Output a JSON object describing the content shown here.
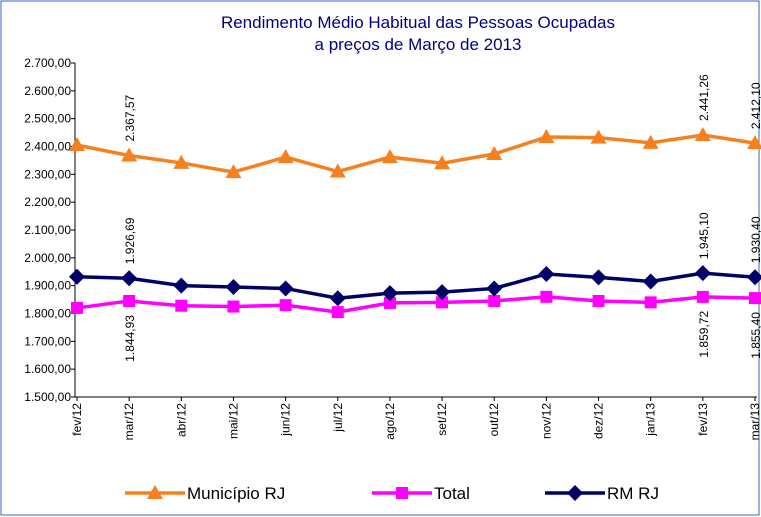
{
  "chart_data": {
    "type": "line",
    "title": [
      "Rendimento Médio Habitual das Pessoas Ocupadas",
      "a preços de Março de 2013"
    ],
    "categories": [
      "fev/12",
      "mar/12",
      "abr/12",
      "mai/12",
      "jun/12",
      "jul/12",
      "ago/12",
      "set/12",
      "out/12",
      "nov/12",
      "dez/12",
      "jan/13",
      "fev/13",
      "mar/13"
    ],
    "ylim": [
      1500,
      2700
    ],
    "yticks": [
      {
        "value": 1500,
        "label": "1.500,00"
      },
      {
        "value": 1600,
        "label": "1.600,00"
      },
      {
        "value": 1700,
        "label": "1.700,00"
      },
      {
        "value": 1800,
        "label": "1.800,00"
      },
      {
        "value": 1900,
        "label": "1.900,00"
      },
      {
        "value": 2000,
        "label": "2.000,00"
      },
      {
        "value": 2100,
        "label": "2.100,00"
      },
      {
        "value": 2200,
        "label": "2.200,00"
      },
      {
        "value": 2300,
        "label": "2.300,00"
      },
      {
        "value": 2400,
        "label": "2.400,00"
      },
      {
        "value": 2500,
        "label": "2.500,00"
      },
      {
        "value": 2600,
        "label": "2.600,00"
      },
      {
        "value": 2700,
        "label": "2.700,00"
      }
    ],
    "grid": false,
    "legend": "bottom",
    "series": [
      {
        "name": "Município RJ",
        "color": "#F7801E",
        "marker": "triangle",
        "values": [
          2405,
          2367.57,
          2341,
          2308,
          2362,
          2310,
          2362,
          2340,
          2373,
          2434,
          2432,
          2413,
          2441.26,
          2412.1
        ],
        "value_labels": [
          null,
          "2.367,57",
          null,
          null,
          null,
          null,
          null,
          null,
          null,
          null,
          null,
          null,
          "2.441,26",
          "2.412,10"
        ]
      },
      {
        "name": "Total",
        "color": "#FF00FF",
        "marker": "square",
        "values": [
          1820,
          1844.93,
          1828,
          1825,
          1830,
          1805,
          1838,
          1840,
          1845,
          1860,
          1845,
          1840,
          1859.72,
          1855.4
        ],
        "value_labels": [
          null,
          "1.844,93",
          null,
          null,
          null,
          null,
          null,
          null,
          null,
          null,
          null,
          null,
          "1.859,72",
          "1.855,40"
        ]
      },
      {
        "name": "RM RJ",
        "color": "#000066",
        "marker": "diamond",
        "values": [
          1932,
          1926.69,
          1900,
          1895,
          1890,
          1855,
          1873,
          1877,
          1890,
          1942,
          1930,
          1915,
          1945.1,
          1930.4
        ],
        "value_labels": [
          null,
          "1.926,69",
          null,
          null,
          null,
          null,
          null,
          null,
          null,
          null,
          null,
          null,
          "1.945,10",
          "1.930,40"
        ]
      }
    ]
  }
}
